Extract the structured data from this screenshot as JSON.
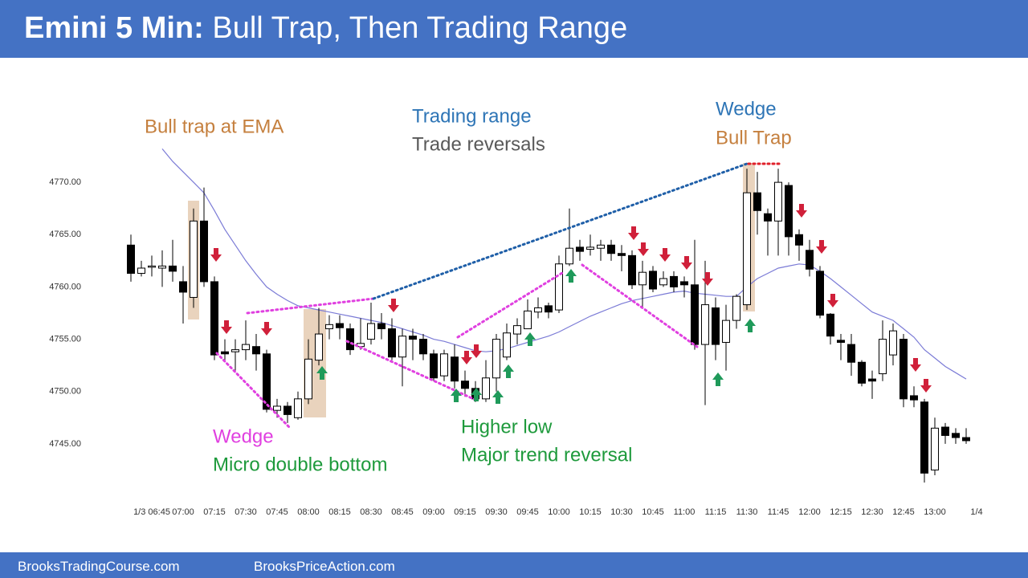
{
  "header": {
    "title_bold": "Emini 5 Min:",
    "title_rest": "Bull Trap, Then Trading Range"
  },
  "chart_data": {
    "type": "candlestick",
    "categories": [
      null,
      null,
      "1/3 06:45",
      null,
      null,
      "07:00",
      null,
      null,
      "07:15",
      null,
      null,
      "07:30",
      null,
      null,
      "07:45",
      null,
      null,
      "08:00",
      null,
      null,
      "08:15",
      null,
      null,
      "08:30",
      null,
      null,
      "08:45",
      null,
      null,
      "09:00",
      null,
      null,
      "09:15",
      null,
      null,
      "09:30",
      null,
      null,
      "09:45",
      null,
      null,
      "10:00",
      null,
      null,
      "10:15",
      null,
      null,
      "10:30",
      null,
      null,
      "10:45",
      null,
      null,
      "11:00",
      null,
      null,
      "11:15",
      null,
      null,
      "11:30",
      null,
      null,
      "11:45",
      null,
      null,
      "12:00",
      null,
      null,
      "12:15",
      null,
      null,
      "12:30",
      null,
      null,
      "12:45",
      null,
      null,
      "13:00",
      null,
      null,
      null,
      "1/4"
    ],
    "open": [
      4764,
      4761.3,
      4762,
      4761.8,
      4762,
      4760.5,
      4759,
      4766.3,
      4760.5,
      4753.8,
      4753.8,
      4754,
      4754.3,
      4753.6,
      4748.2,
      4748.6,
      4747.5,
      4749.3,
      4753,
      4756,
      4756.5,
      4756,
      4754.3,
      4755,
      4756.5,
      4756,
      4753.3,
      4755.3,
      4755,
      4753.6,
      4751.5,
      4753.3,
      4751,
      4750.3,
      4749.3,
      4751.3,
      4753.3,
      4755.5,
      4756,
      4757.6,
      4758.2,
      4757.8,
      4762.2,
      4763.8,
      4763.6,
      4763.7,
      4764,
      4763.2,
      4763,
      4760.2,
      4761.5,
      4760.2,
      4761,
      4760.5,
      4760.2,
      4754.5,
      4758,
      4754.7,
      4756.8,
      4758.3,
      4769,
      4767,
      4766.3,
      4769.7,
      4765,
      4763.5,
      4761.5,
      4757.4,
      4754.9,
      4754.5,
      4752.8,
      4751.2,
      4751.7,
      4753.5,
      4755,
      4749.6,
      4749,
      4742.5,
      4746.6,
      4746,
      4745.6,
      null
    ],
    "high": [
      4765,
      4762.5,
      4763,
      4763.5,
      4764.5,
      4762,
      4767.5,
      4769.5,
      4761,
      4755,
      4755,
      4756.8,
      4755.5,
      4754,
      4749.3,
      4749,
      4750,
      4755,
      4758,
      4757.3,
      4757.3,
      4756.5,
      4757,
      4758.5,
      4757.5,
      4757,
      4756,
      4756,
      4755.5,
      4754,
      4754,
      4754.5,
      4752,
      4751,
      4753,
      4755.5,
      4756.5,
      4757,
      4758.8,
      4759,
      4758.5,
      4763,
      4767.5,
      4764.5,
      4765,
      4764.5,
      4764.5,
      4764,
      4763.5,
      4762.5,
      4762,
      4761.5,
      4761.5,
      4761,
      4764.5,
      4762.5,
      4759,
      4758.3,
      4759.3,
      4771.3,
      4771,
      4767.5,
      4771.3,
      4770,
      4765.5,
      4764.5,
      4762,
      4757.5,
      4755.5,
      4755.5,
      4753,
      4752,
      4756.8,
      4756.5,
      4755.5,
      4750.5,
      4749.3,
      4747.5,
      4747,
      4746.5,
      4746.5,
      null
    ],
    "low": [
      4760.5,
      4761,
      4761,
      4760,
      4760.5,
      4756.5,
      4758,
      4760,
      4753,
      4753,
      4752,
      4753,
      4752,
      4748,
      4747.5,
      4747,
      4747.3,
      4748.8,
      4752.5,
      4755,
      4755,
      4753.5,
      4754,
      4754.5,
      4755,
      4753,
      4750.5,
      4753,
      4753,
      4751,
      4751,
      4750.3,
      4749.5,
      4749,
      4749,
      4750,
      4753,
      4754.5,
      4756,
      4757,
      4757,
      4757.5,
      4762,
      4762.5,
      4763,
      4762.5,
      4762.5,
      4761.5,
      4759.8,
      4758,
      4759.5,
      4760,
      4759.5,
      4759,
      4754,
      4748.7,
      4753,
      4752,
      4756,
      4757.8,
      4765,
      4763,
      4763,
      4763,
      4762.5,
      4761,
      4757,
      4754.5,
      4753,
      4751.5,
      4750.5,
      4749.3,
      4751,
      4752.5,
      4748.5,
      4748.5,
      4741.3,
      4742,
      4745,
      4745,
      4745,
      null
    ],
    "close": [
      4761.3,
      4761.8,
      4762,
      4762,
      4761.5,
      4759.5,
      4766.3,
      4760.5,
      4753.5,
      4753.6,
      4754,
      4754.5,
      4753.6,
      4748.3,
      4748.6,
      4747.8,
      4749.3,
      4753.1,
      4755.5,
      4756.4,
      4756.1,
      4754,
      4754.6,
      4756.5,
      4756,
      4753.3,
      4755.3,
      4755,
      4753.6,
      4751.3,
      4753.6,
      4751,
      4750.3,
      4749.3,
      4751.3,
      4755,
      4755.6,
      4756.3,
      4757.7,
      4758,
      4757.6,
      4762.2,
      4763.7,
      4763.4,
      4763.8,
      4764,
      4763.2,
      4763,
      4760.2,
      4761.4,
      4759.8,
      4760.8,
      4760,
      4760.2,
      4754.5,
      4758.3,
      4754.5,
      4756.8,
      4759.1,
      4769,
      4767.3,
      4766.3,
      4770,
      4764.8,
      4764,
      4761.7,
      4757.3,
      4755.3,
      4754.7,
      4752.8,
      4750.8,
      4751,
      4755,
      4755.8,
      4749.3,
      4749.2,
      4742.2,
      4746.5,
      4745.8,
      4745.6,
      4745.3,
      null
    ],
    "ema": [
      null,
      null,
      null,
      4773.2,
      4772,
      4771,
      4770,
      4769,
      4767.3,
      4765.5,
      4764,
      4762.5,
      4761.2,
      4760,
      4759.3,
      4758.7,
      4758.2,
      4758,
      4757.8,
      4757.6,
      4757.4,
      4757.2,
      4757,
      4756.8,
      4756.6,
      4756.3,
      4756,
      4755.7,
      4755.4,
      4755,
      4754.8,
      4754.5,
      4754.2,
      4753.9,
      4753.8,
      4753.9,
      4754.1,
      4754.4,
      4754.7,
      4755,
      4755.3,
      4755.7,
      4756.2,
      4756.7,
      4757.2,
      4757.6,
      4758,
      4758.4,
      4758.7,
      4758.9,
      4759.1,
      4759.3,
      4759.5,
      4759.6,
      4759.4,
      4759.3,
      4759.2,
      4759.1,
      4759.1,
      4760,
      4760.8,
      4761.3,
      4761.8,
      4762,
      4762.2,
      4762.1,
      4761.5,
      4760.8,
      4760,
      4759.2,
      4758.4,
      4757.6,
      4757.2,
      4756.8,
      4756,
      4755.2,
      4754,
      4753.2,
      4752.4,
      4751.8,
      4751.2,
      null
    ],
    "ema_color": "#7b7bd6",
    "up_color": "#ffffff",
    "down_color": "#000000",
    "ylim": [
      4741,
      4774
    ],
    "yticks": [
      {
        "value": 4745,
        "label": "4745.00"
      },
      {
        "value": 4750,
        "label": "4750.00"
      },
      {
        "value": 4755,
        "label": "4755.00"
      },
      {
        "value": 4760,
        "label": "4760.00"
      },
      {
        "value": 4765,
        "label": "4765.00"
      },
      {
        "value": 4770,
        "label": "4770.00"
      }
    ],
    "annotations": [
      "Bull trap at EMA",
      "Trading range",
      "Trade reversals",
      "Wedge",
      "Bull Trap",
      "Wedge",
      "Micro double bottom",
      "Higher low",
      "Major trend reversal"
    ]
  },
  "footer": {
    "left": "BrooksTradingCourse.com",
    "right": "BrooksPriceAction.com"
  }
}
